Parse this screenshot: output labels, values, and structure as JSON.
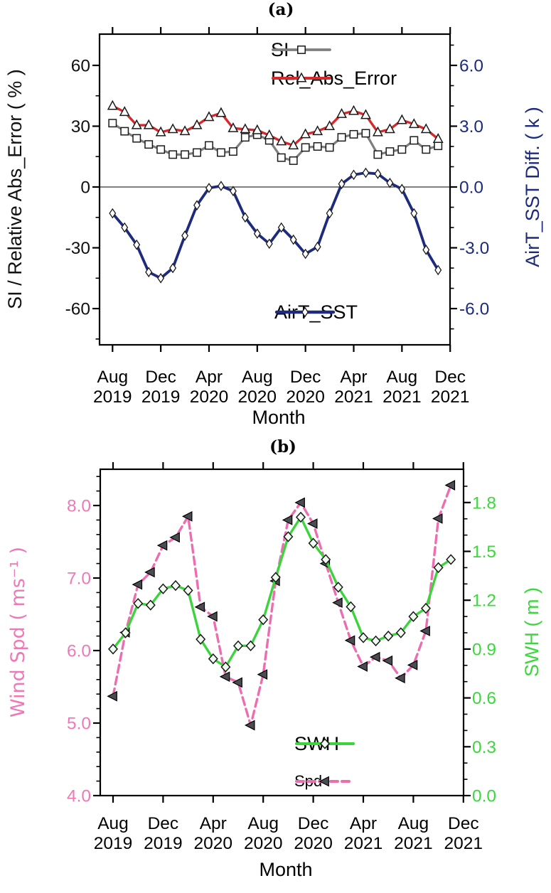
{
  "figure": {
    "background": "#ffffff"
  },
  "chart_data": [
    {
      "panel": "a",
      "type": "line",
      "title": "(a)",
      "x": {
        "axis_label": "Month",
        "categories": [
          "Aug 2019",
          "Sep 2019",
          "Oct 2019",
          "Nov 2019",
          "Dec 2019",
          "Jan 2020",
          "Feb 2020",
          "Mar 2020",
          "Apr 2020",
          "May 2020",
          "Jun 2020",
          "Jul 2020",
          "Aug 2020",
          "Sep 2020",
          "Oct 2020",
          "Nov 2020",
          "Dec 2020",
          "Jan 2021",
          "Feb 2021",
          "Mar 2021",
          "Apr 2021",
          "May 2021",
          "Jun 2021",
          "Jul 2021",
          "Aug 2021",
          "Sep 2021",
          "Oct 2021",
          "Nov 2021"
        ],
        "tick_positions": [
          0,
          4,
          8,
          12,
          16,
          20,
          24,
          28
        ],
        "tick_month_labels": [
          "Aug",
          "Dec",
          "Apr",
          "Aug",
          "Dec",
          "Apr",
          "Aug",
          "Dec"
        ],
        "tick_year_labels": [
          "2019",
          "2019",
          "2020",
          "2020",
          "2020",
          "2021",
          "2021",
          "2021"
        ]
      },
      "left_axis": {
        "label": "SI / Relative Abs_Error ( % )",
        "color": "#111111",
        "tick_labels": [
          "60",
          "30",
          "0",
          "-30",
          "-60"
        ],
        "tick_values": [
          60,
          30,
          0,
          -30,
          -60
        ],
        "minor_step": 15,
        "range": [
          -77.9,
          75.4
        ]
      },
      "right_axis": {
        "label": "AirT_SST Diff. ( k )",
        "color": "#1e2b7d",
        "tick_labels": [
          "6.0",
          "3.0",
          "0.0",
          "-3.0",
          "-6.0"
        ],
        "tick_values": [
          6,
          3,
          0,
          -3,
          -6
        ],
        "minor_step": 1,
        "range": [
          -7.79,
          7.54
        ]
      },
      "zero_line": true,
      "series": [
        {
          "name": "SI",
          "axis": "left",
          "color": "#7e7e7e",
          "marker": "square",
          "dash": "solid",
          "width": 3.2,
          "values": [
            31.5,
            27.5,
            24,
            21,
            18.5,
            16,
            16,
            17,
            20.5,
            17,
            17.5,
            24.5,
            25.8,
            23,
            14.5,
            13,
            19.5,
            20,
            19.5,
            24.5,
            26,
            26.5,
            16,
            17.5,
            18.5,
            23,
            18.5,
            20.3
          ]
        },
        {
          "name": "Rel_Abs_Error",
          "axis": "left",
          "color": "#d7282b",
          "marker": "triangle-up",
          "dash": "solid",
          "width": 3.4,
          "values": [
            40,
            37,
            30.5,
            30.5,
            27,
            28.5,
            27.5,
            30.5,
            34.5,
            36.5,
            29,
            28.5,
            28,
            25.5,
            22.5,
            20.5,
            26,
            27.5,
            30,
            36,
            37.5,
            35.5,
            27,
            28.5,
            33,
            31,
            28.5,
            23.7
          ]
        },
        {
          "name": "AirT_SST",
          "axis": "right",
          "color": "#1e2b7d",
          "marker": "diamond-thin",
          "dash": "solid",
          "width": 3.8,
          "values": [
            -1.3,
            -2.0,
            -2.85,
            -4.2,
            -4.5,
            -4.0,
            -2.4,
            -0.9,
            -0.05,
            0.05,
            -0.2,
            -1.5,
            -2.3,
            -2.8,
            -2.0,
            -2.6,
            -3.3,
            -2.95,
            -1.3,
            0.15,
            0.6,
            0.7,
            0.65,
            0.2,
            -0.1,
            -1.3,
            -3.1,
            -4.1
          ]
        }
      ],
      "legend_main": [
        {
          "series": "SI",
          "label": "SI",
          "label_size": "normal"
        },
        {
          "series": "Rel_Abs_Error",
          "label": "Rel_Abs_Error",
          "label_size": "normal"
        }
      ],
      "legend_inner": [
        {
          "series": "AirT_SST",
          "label": "AirT_SST",
          "label_size": "normal"
        }
      ]
    },
    {
      "panel": "b",
      "type": "line",
      "title": "(b)",
      "x": {
        "axis_label": "Month",
        "categories": [
          "Aug 2019",
          "Sep 2019",
          "Oct 2019",
          "Nov 2019",
          "Dec 2019",
          "Jan 2020",
          "Feb 2020",
          "Mar 2020",
          "Apr 2020",
          "May 2020",
          "Jun 2020",
          "Jul 2020",
          "Aug 2020",
          "Sep 2020",
          "Oct 2020",
          "Nov 2020",
          "Dec 2020",
          "Jan 2021",
          "Feb 2021",
          "Mar 2021",
          "Apr 2021",
          "May 2021",
          "Jun 2021",
          "Jul 2021",
          "Aug 2021",
          "Sep 2021",
          "Oct 2021",
          "Nov 2021"
        ],
        "tick_positions": [
          0,
          4,
          8,
          12,
          16,
          20,
          24,
          28
        ],
        "tick_month_labels": [
          "Aug",
          "Dec",
          "Apr",
          "Aug",
          "Dec",
          "Apr",
          "Aug",
          "Dec"
        ],
        "tick_year_labels": [
          "2019",
          "2019",
          "2020",
          "2020",
          "2020",
          "2021",
          "2021",
          "2021"
        ]
      },
      "left_axis": {
        "label": "Wind Spd ( ms⁻¹ )",
        "color": "#ee79b6",
        "tick_labels": [
          "8.0",
          "7.0",
          "6.0",
          "5.0",
          "4.0"
        ],
        "tick_values": [
          8,
          7,
          6,
          5,
          4
        ],
        "minor_step": 0.2,
        "range": [
          4.0,
          8.5
        ]
      },
      "right_axis": {
        "label": "SWH ( m )",
        "color": "#3ed63e",
        "tick_labels": [
          "1.8",
          "1.5",
          "1.2",
          "0.9",
          "0.6",
          "0.3",
          "0.0"
        ],
        "tick_values": [
          1.8,
          1.5,
          1.2,
          0.9,
          0.6,
          0.3,
          0.0
        ],
        "minor_step": 0.1,
        "range": [
          0.0,
          2.0
        ]
      },
      "zero_line": false,
      "series": [
        {
          "name": "Spd",
          "axis": "left",
          "color": "#ec6eb0",
          "marker": "triangle-left",
          "dash": "dashed",
          "width": 3.4,
          "values": [
            5.37,
            6.25,
            6.91,
            7.08,
            7.45,
            7.56,
            7.85,
            6.6,
            6.47,
            5.64,
            5.56,
            4.97,
            5.67,
            6.96,
            7.8,
            8.04,
            7.75,
            7.2,
            6.66,
            6.14,
            5.78,
            5.91,
            5.86,
            5.62,
            5.8,
            6.27,
            7.82,
            8.28
          ]
        },
        {
          "name": "SWH",
          "axis": "right",
          "color": "#3cd43c",
          "marker": "diamond",
          "dash": "solid",
          "width": 3.4,
          "values": [
            0.9,
            1.0,
            1.18,
            1.17,
            1.27,
            1.29,
            1.26,
            0.96,
            0.84,
            0.79,
            0.92,
            0.92,
            1.08,
            1.34,
            1.59,
            1.71,
            1.55,
            1.45,
            1.28,
            1.16,
            0.97,
            0.95,
            0.98,
            1.0,
            1.1,
            1.15,
            1.4,
            1.45
          ]
        }
      ],
      "legend_main": [
        {
          "series": "SWH",
          "label": "SWH",
          "label_size": "normal"
        },
        {
          "series": "Spd",
          "label": "Spd",
          "label_size": "small"
        }
      ],
      "legend_inner": []
    }
  ]
}
